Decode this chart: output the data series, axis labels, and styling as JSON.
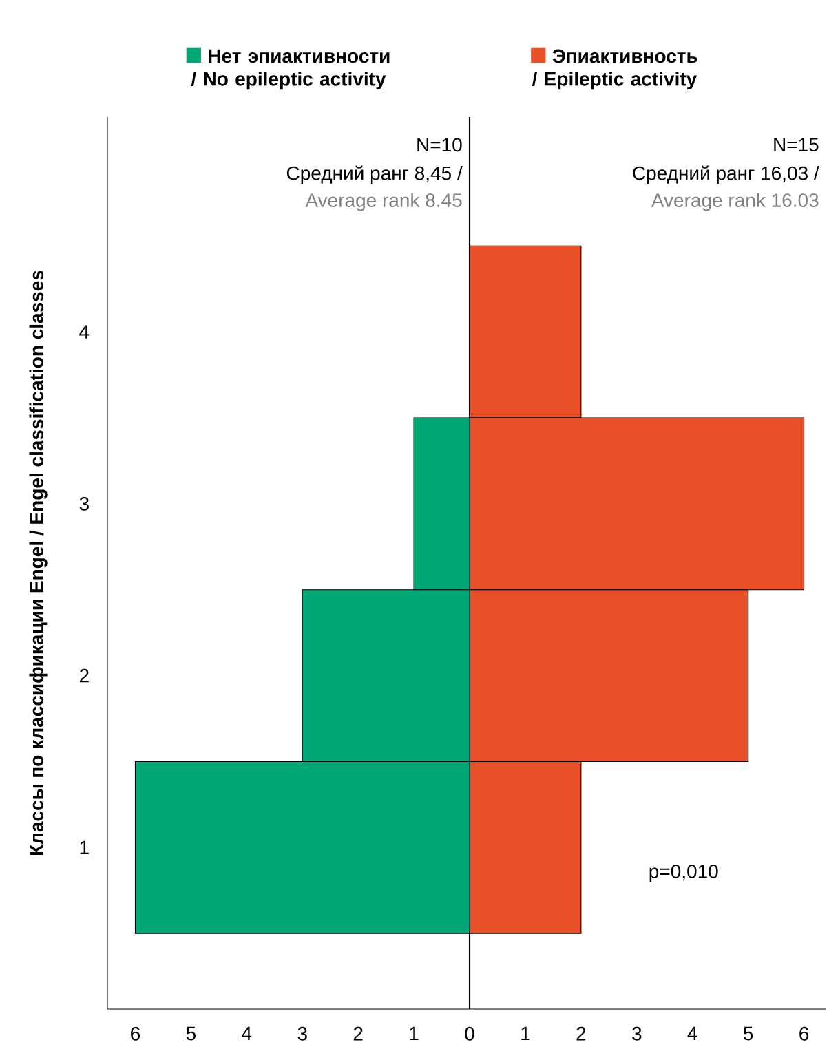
{
  "chart_data": {
    "type": "bar",
    "orientation": "horizontal",
    "stacked": true,
    "legend": "top",
    "ylabel": "Классы по классификации Engel / Engel classification classes",
    "categories": [
      "4",
      "3",
      "2",
      "1"
    ],
    "series": [
      {
        "name": "Нет эпиактивности / No epileptic activity",
        "color": "#00a875",
        "values": [
          0,
          -1,
          -3,
          -6
        ]
      },
      {
        "name": "Эпиактивность / Epileptic activity",
        "color": "#e84f26",
        "values": [
          2,
          6,
          5,
          2
        ]
      }
    ],
    "xlim": [
      -6.5,
      6.4
    ],
    "xticks": [
      {
        "value": -6,
        "label": "6"
      },
      {
        "value": -5,
        "label": "5"
      },
      {
        "value": -4,
        "label": "4"
      },
      {
        "value": -3,
        "label": "3"
      },
      {
        "value": -2,
        "label": "2"
      },
      {
        "value": -1,
        "label": "1"
      },
      0,
      1,
      2,
      3,
      4,
      5,
      6
    ],
    "ref_lines": [
      {
        "axis": "x",
        "value": 0,
        "color": "#000000"
      }
    ],
    "annotations": [
      "N=10",
      "Средний ранг 8,45 /",
      "Average rank 8.45",
      "N=15",
      "Средний ранг 16,03 /",
      "Average rank 16.03",
      "p=0,010"
    ]
  }
}
